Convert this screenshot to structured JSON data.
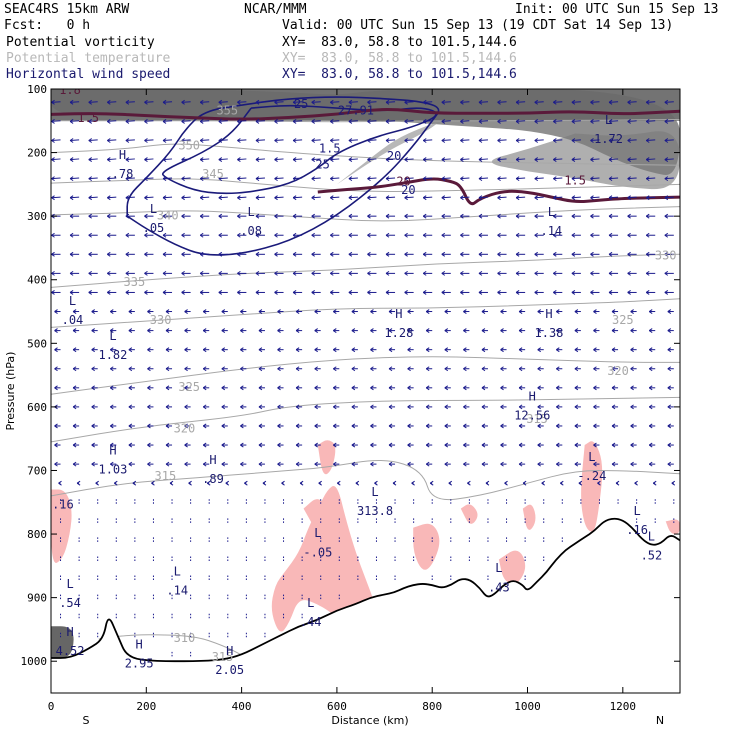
{
  "header": {
    "model": "SEAC4RS 15km ARW",
    "org": "NCAR/MMM",
    "init": "Init: 00 UTC Sun 15 Sep 13",
    "fcst": "Fcst:   0 h",
    "valid": "Valid: 00 UTC Sun 15 Sep 13 (19 CDT Sat 14 Sep 13)"
  },
  "fields": [
    {
      "name": "Potential vorticity",
      "xy": "XY=  83.0, 58.8 to 101.5,144.6",
      "color": "#000000"
    },
    {
      "name": "Potential temperature",
      "xy": "XY=  83.0, 58.8 to 101.5,144.6",
      "color": "#b8b8b8"
    },
    {
      "name": "Horizontal wind speed",
      "xy": "XY=  83.0, 58.8 to 101.5,144.6",
      "color": "#1a1a6e"
    }
  ],
  "chart_data": {
    "type": "cross-section",
    "xlabel": "Distance (km)",
    "ylabel": "Pressure (hPa)",
    "xlim": [
      0,
      1320
    ],
    "ylim": [
      1050,
      100
    ],
    "x_ticks": [
      "0",
      "200",
      "400",
      "600",
      "800",
      "1000",
      "1200"
    ],
    "y_ticks": [
      "100",
      "200",
      "300",
      "400",
      "500",
      "600",
      "700",
      "800",
      "900",
      "1000"
    ],
    "end_labels": {
      "left": "S",
      "right": "N"
    },
    "terrain": [
      [
        0,
        995
      ],
      [
        40,
        995
      ],
      [
        80,
        980
      ],
      [
        110,
        965
      ],
      [
        120,
        925
      ],
      [
        140,
        960
      ],
      [
        160,
        995
      ],
      [
        220,
        1000
      ],
      [
        300,
        1000
      ],
      [
        360,
        998
      ],
      [
        400,
        990
      ],
      [
        440,
        975
      ],
      [
        480,
        960
      ],
      [
        520,
        945
      ],
      [
        560,
        935
      ],
      [
        600,
        920
      ],
      [
        640,
        910
      ],
      [
        670,
        900
      ],
      [
        700,
        895
      ],
      [
        720,
        892
      ],
      [
        740,
        885
      ],
      [
        760,
        880
      ],
      [
        780,
        878
      ],
      [
        800,
        880
      ],
      [
        820,
        885
      ],
      [
        840,
        880
      ],
      [
        860,
        870
      ],
      [
        880,
        872
      ],
      [
        900,
        885
      ],
      [
        915,
        900
      ],
      [
        930,
        895
      ],
      [
        950,
        880
      ],
      [
        970,
        872
      ],
      [
        990,
        880
      ],
      [
        1000,
        890
      ],
      [
        1020,
        875
      ],
      [
        1040,
        860
      ],
      [
        1060,
        840
      ],
      [
        1080,
        825
      ],
      [
        1100,
        815
      ],
      [
        1120,
        805
      ],
      [
        1140,
        795
      ],
      [
        1160,
        780
      ],
      [
        1180,
        775
      ],
      [
        1200,
        778
      ],
      [
        1220,
        790
      ],
      [
        1240,
        808
      ],
      [
        1260,
        818
      ],
      [
        1280,
        815
      ],
      [
        1300,
        800
      ],
      [
        1320,
        810
      ]
    ],
    "theta_contours": [
      {
        "label": "355",
        "points": [
          [
            0,
            150
          ],
          [
            200,
            150
          ],
          [
            400,
            150
          ],
          [
            600,
            152
          ],
          [
            800,
            150
          ],
          [
            1000,
            150
          ],
          [
            1320,
            148
          ]
        ]
      },
      {
        "label": "350",
        "points": [
          [
            0,
            200
          ],
          [
            150,
            195
          ],
          [
            250,
            185
          ],
          [
            350,
            190
          ],
          [
            500,
            200
          ],
          [
            700,
            210
          ],
          [
            900,
            215
          ],
          [
            1320,
            220
          ]
        ]
      },
      {
        "label": "345",
        "points": [
          [
            0,
            248
          ],
          [
            150,
            244
          ],
          [
            300,
            240
          ],
          [
            450,
            250
          ],
          [
            650,
            262
          ],
          [
            850,
            260
          ],
          [
            1100,
            255
          ],
          [
            1320,
            250
          ]
        ]
      },
      {
        "label": "340",
        "points": [
          [
            0,
            298
          ],
          [
            150,
            295
          ],
          [
            300,
            290
          ],
          [
            500,
            300
          ],
          [
            700,
            310
          ],
          [
            900,
            300
          ],
          [
            1100,
            290
          ],
          [
            1320,
            285
          ]
        ]
      },
      {
        "label": "335",
        "points": [
          [
            0,
            412
          ],
          [
            200,
            400
          ],
          [
            400,
            390
          ],
          [
            600,
            385
          ],
          [
            800,
            375
          ],
          [
            1000,
            370
          ],
          [
            1200,
            362
          ],
          [
            1320,
            360
          ]
        ]
      },
      {
        "label": "330",
        "points": [
          [
            0,
            475
          ],
          [
            200,
            465
          ],
          [
            400,
            455
          ],
          [
            600,
            445
          ],
          [
            800,
            445
          ],
          [
            1000,
            440
          ],
          [
            1200,
            435
          ],
          [
            1320,
            430
          ]
        ]
      },
      {
        "label": "325",
        "points": [
          [
            0,
            580
          ],
          [
            200,
            560
          ],
          [
            400,
            540
          ],
          [
            600,
            525
          ],
          [
            800,
            520
          ],
          [
            1000,
            525
          ],
          [
            1200,
            530
          ],
          [
            1320,
            530
          ]
        ]
      },
      {
        "label": "320",
        "points": [
          [
            0,
            655
          ],
          [
            200,
            630
          ],
          [
            400,
            615
          ],
          [
            500,
            598
          ],
          [
            700,
            590
          ],
          [
            900,
            590
          ],
          [
            1100,
            588
          ],
          [
            1320,
            585
          ]
        ]
      },
      {
        "label": "315",
        "points": [
          [
            0,
            740
          ],
          [
            150,
            720
          ],
          [
            300,
            712
          ],
          [
            500,
            700
          ],
          [
            580,
            695
          ],
          [
            700,
            680
          ],
          [
            780,
            700
          ],
          [
            800,
            750
          ],
          [
            900,
            740
          ],
          [
            1000,
            720
          ],
          [
            1100,
            700
          ],
          [
            1200,
            700
          ],
          [
            1320,
            705
          ]
        ]
      },
      {
        "label": "310",
        "points": [
          [
            100,
            965
          ],
          [
            150,
            960
          ],
          [
            200,
            958
          ],
          [
            300,
            960
          ],
          [
            360,
            975
          ],
          [
            400,
            990
          ]
        ]
      }
    ],
    "pv_contours": [
      {
        "label": "1.5",
        "points": [
          [
            0,
            140
          ],
          [
            100,
            138
          ],
          [
            200,
            142
          ],
          [
            300,
            145
          ],
          [
            400,
            148
          ],
          [
            500,
            145
          ],
          [
            600,
            140
          ],
          [
            700,
            130
          ],
          [
            800,
            138
          ],
          [
            900,
            138
          ],
          [
            1000,
            138
          ],
          [
            1100,
            135
          ],
          [
            1200,
            140
          ],
          [
            1320,
            135
          ]
        ]
      },
      {
        "label": "1.5",
        "points": [
          [
            560,
            262
          ],
          [
            620,
            258
          ],
          [
            680,
            255
          ],
          [
            740,
            248
          ],
          [
            800,
            240
          ],
          [
            840,
            245
          ],
          [
            860,
            252
          ],
          [
            880,
            285
          ],
          [
            900,
            272
          ],
          [
            950,
            260
          ],
          [
            1000,
            262
          ],
          [
            1050,
            270
          ],
          [
            1100,
            278
          ],
          [
            1150,
            275
          ],
          [
            1200,
            272
          ],
          [
            1320,
            270
          ]
        ]
      }
    ],
    "wind_contours": [
      {
        "label": "25",
        "points": [
          [
            420,
            130
          ],
          [
            500,
            125
          ],
          [
            600,
            130
          ],
          [
            700,
            135
          ],
          [
            780,
            128
          ],
          [
            820,
            140
          ],
          [
            760,
            160
          ],
          [
            680,
            175
          ],
          [
            600,
            200
          ],
          [
            560,
            225
          ],
          [
            500,
            250
          ],
          [
            420,
            262
          ],
          [
            360,
            265
          ],
          [
            300,
            260
          ],
          [
            240,
            240
          ],
          [
            230,
            230
          ],
          [
            320,
            200
          ],
          [
            380,
            170
          ],
          [
            420,
            130
          ]
        ]
      },
      {
        "label": "20",
        "points": [
          [
            160,
            300
          ],
          [
            200,
            320
          ],
          [
            260,
            345
          ],
          [
            320,
            362
          ],
          [
            400,
            360
          ],
          [
            500,
            340
          ],
          [
            600,
            300
          ],
          [
            700,
            240
          ],
          [
            760,
            190
          ],
          [
            800,
            150
          ],
          [
            820,
            130
          ],
          [
            780,
            120
          ],
          [
            700,
            115
          ],
          [
            600,
            112
          ],
          [
            500,
            115
          ],
          [
            400,
            125
          ],
          [
            320,
            135
          ],
          [
            280,
            165
          ],
          [
            250,
            200
          ],
          [
            200,
            240
          ],
          [
            160,
            270
          ],
          [
            160,
            300
          ]
        ]
      }
    ],
    "wind_labels": [
      {
        "x": 525,
        "y": 130,
        "text": "25"
      },
      {
        "x": 640,
        "y": 140,
        "text": "27.91"
      },
      {
        "x": 585,
        "y": 200,
        "text": "1.5"
      },
      {
        "x": 570,
        "y": 225,
        "text": "25"
      },
      {
        "x": 720,
        "y": 212,
        "text": "20"
      },
      {
        "x": 750,
        "y": 265,
        "text": "20"
      }
    ],
    "pv_labels": [
      {
        "x": 40,
        "y": 108,
        "text": "1.8"
      },
      {
        "x": 78,
        "y": 152,
        "text": "1.5"
      },
      {
        "x": 740,
        "y": 252,
        "text": "20"
      },
      {
        "x": 1100,
        "y": 250,
        "text": "1.5"
      }
    ],
    "theta_labels": [
      {
        "x": 370,
        "y": 140,
        "text": "355"
      },
      {
        "x": 290,
        "y": 195,
        "text": "350"
      },
      {
        "x": 340,
        "y": 240,
        "text": "345"
      },
      {
        "x": 245,
        "y": 305,
        "text": "340"
      },
      {
        "x": 175,
        "y": 410,
        "text": "335"
      },
      {
        "x": 1290,
        "y": 368,
        "text": "330"
      },
      {
        "x": 230,
        "y": 470,
        "text": "330"
      },
      {
        "x": 1200,
        "y": 470,
        "text": "325"
      },
      {
        "x": 290,
        "y": 575,
        "text": "325"
      },
      {
        "x": 1190,
        "y": 550,
        "text": "320"
      },
      {
        "x": 280,
        "y": 640,
        "text": "320"
      },
      {
        "x": 1020,
        "y": 625,
        "text": "315"
      },
      {
        "x": 240,
        "y": 715,
        "text": "315"
      },
      {
        "x": 280,
        "y": 970,
        "text": "310"
      },
      {
        "x": 360,
        "y": 1000,
        "text": "315"
      }
    ],
    "hl_labels": [
      {
        "x": 150,
        "y": 240,
        "letter": "H",
        "value": ".78"
      },
      {
        "x": 215,
        "y": 325,
        "letter": "L",
        "value": ".05"
      },
      {
        "x": 420,
        "y": 330,
        "letter": "L",
        "value": ".08"
      },
      {
        "x": 1050,
        "y": 330,
        "letter": "L",
        "value": ".14"
      },
      {
        "x": 1170,
        "y": 185,
        "letter": "L",
        "value": "1.72"
      },
      {
        "x": 45,
        "y": 470,
        "letter": "L",
        "value": ".04"
      },
      {
        "x": 130,
        "y": 525,
        "letter": "L",
        "value": "1.82"
      },
      {
        "x": 730,
        "y": 490,
        "letter": "H",
        "value": "1.28"
      },
      {
        "x": 1045,
        "y": 490,
        "letter": "H",
        "value": "1.38"
      },
      {
        "x": 1010,
        "y": 620,
        "letter": "H",
        "value": "12.56"
      },
      {
        "x": 130,
        "y": 705,
        "letter": "H",
        "value": "1.03"
      },
      {
        "x": 340,
        "y": 720,
        "letter": "H",
        "value": ".89"
      },
      {
        "x": 1135,
        "y": 715,
        "letter": "L",
        "value": "-.24"
      },
      {
        "x": 1230,
        "y": 800,
        "letter": "L",
        "value": ".16"
      },
      {
        "x": 1260,
        "y": 840,
        "letter": "L",
        "value": ".52"
      },
      {
        "x": 25,
        "y": 760,
        "letter": "",
        "value": ".16"
      },
      {
        "x": 680,
        "y": 770,
        "letter": "L",
        "value": "313.8"
      },
      {
        "x": 560,
        "y": 835,
        "letter": "L",
        "value": "-.05"
      },
      {
        "x": 40,
        "y": 915,
        "letter": "L",
        "value": ".54"
      },
      {
        "x": 265,
        "y": 895,
        "letter": "L",
        "value": ".14"
      },
      {
        "x": 545,
        "y": 945,
        "letter": "L",
        "value": ".44"
      },
      {
        "x": 940,
        "y": 890,
        "letter": "L",
        "value": ".43"
      },
      {
        "x": 40,
        "y": 990,
        "letter": "H",
        "value": "4.52"
      },
      {
        "x": 185,
        "y": 1010,
        "letter": "H",
        "value": "2.95"
      },
      {
        "x": 375,
        "y": 1020,
        "letter": "H",
        "value": "2.05"
      }
    ],
    "colors": {
      "pv": "#5a1a3a",
      "theta": "#a8a8a8",
      "wind": "#1a1a7a",
      "pos_shade": "#f9b8b8",
      "terrain": "#000000",
      "vectors": "#1a1a8c"
    }
  }
}
